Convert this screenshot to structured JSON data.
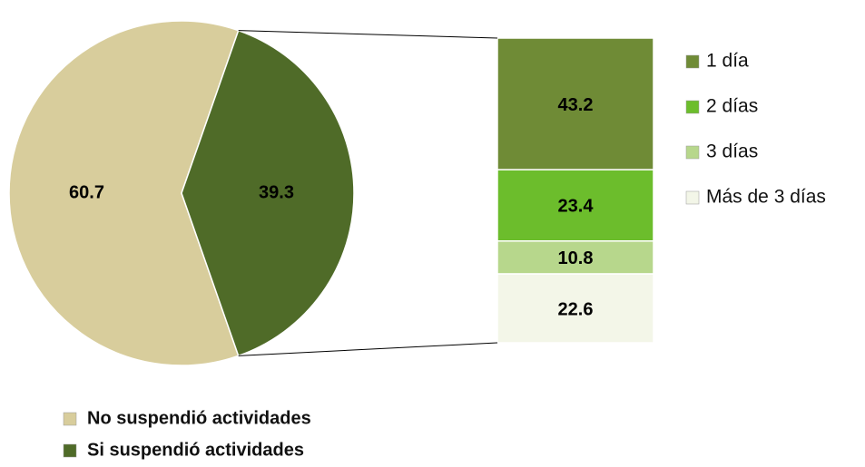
{
  "chart_data": [
    {
      "type": "pie",
      "categories": [
        "No suspendió actividades",
        "Si suspendió actividades"
      ],
      "values": [
        60.7,
        39.3
      ],
      "colors": [
        "#d8cd9c",
        "#4f6b28"
      ],
      "legend": "bottom"
    },
    {
      "type": "bar",
      "stacked": true,
      "series": [
        {
          "name": "1 día",
          "color": "#6f8b36",
          "values": [
            43.2
          ]
        },
        {
          "name": "2 días",
          "color": "#6cbd2c",
          "values": [
            23.4
          ]
        },
        {
          "name": "3 días",
          "color": "#b7d78c",
          "values": [
            10.8
          ]
        },
        {
          "name": "Más de 3 días",
          "color": "#f3f6e8",
          "values": [
            22.6
          ]
        }
      ],
      "legend": "right"
    }
  ]
}
